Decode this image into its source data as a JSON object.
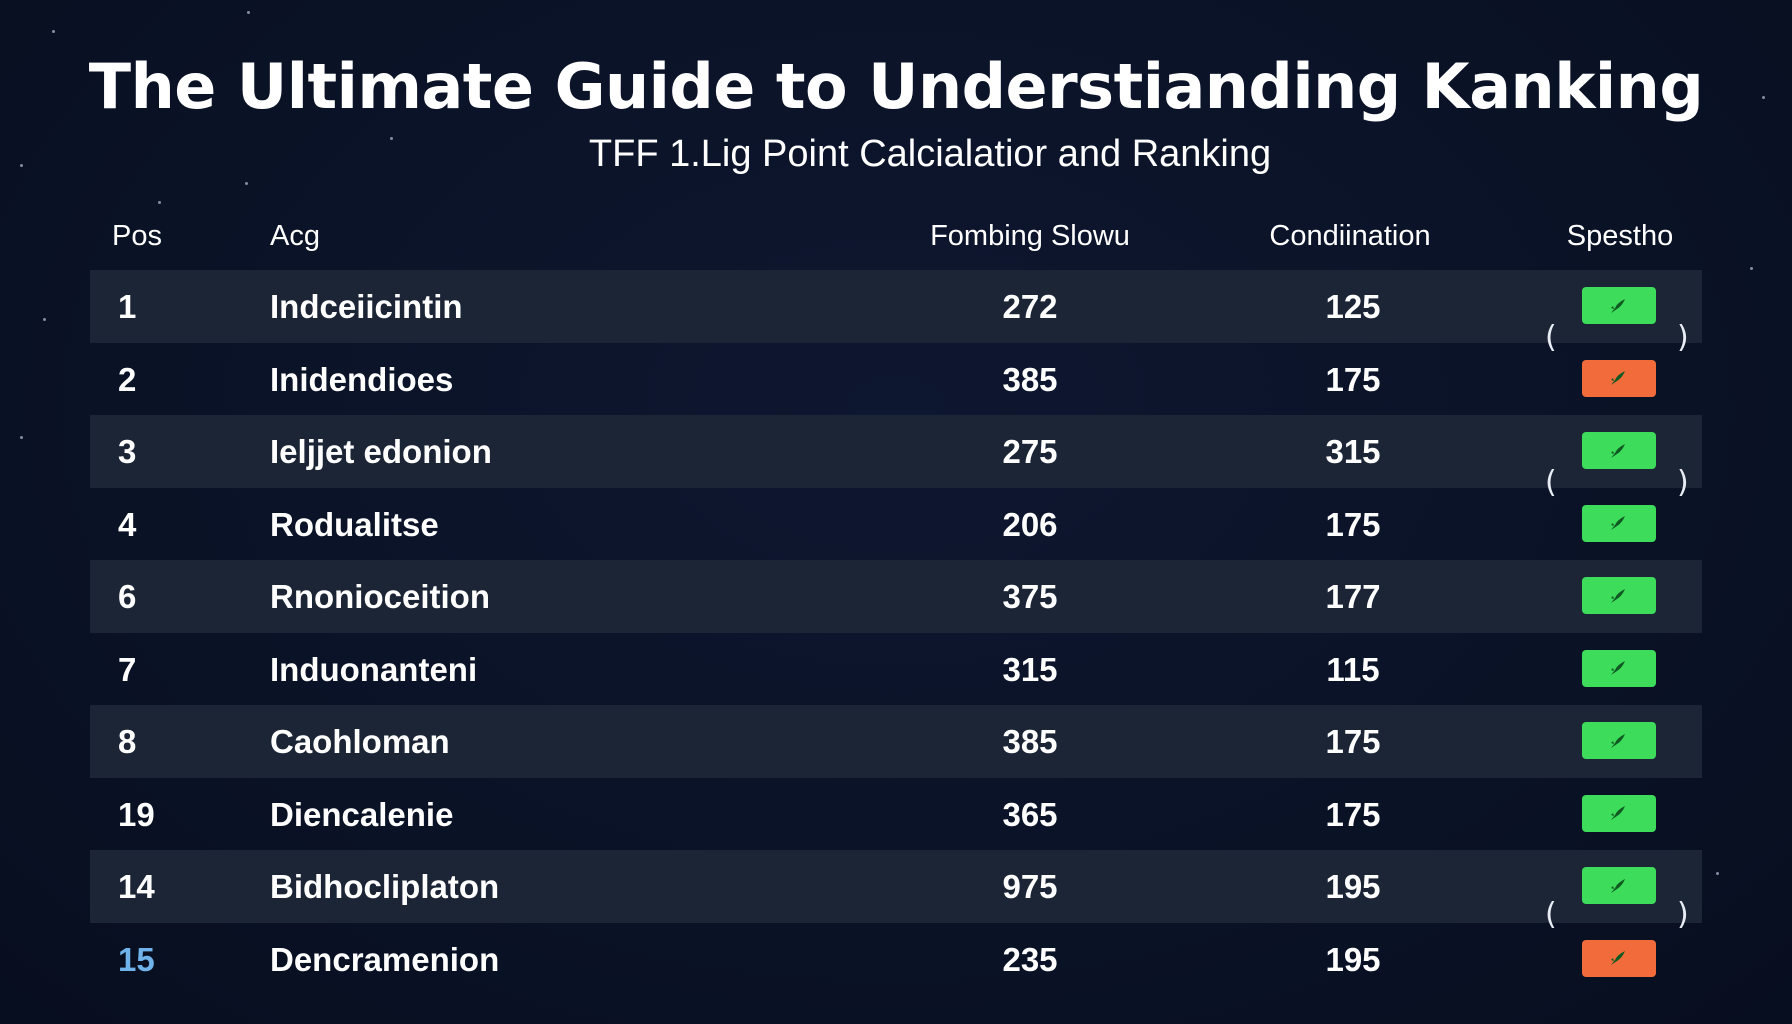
{
  "header": {
    "title": "The Ultimate Guide to Understianding Kanking",
    "subtitle": "TFF 1.Lig Point Calcialatior and Ranking"
  },
  "table": {
    "columns": [
      "Pos",
      "Acg",
      "Fombing Slowu",
      "Condiination",
      "Spestho"
    ],
    "rows": [
      {
        "pos": "1",
        "name": "Indceiicintin",
        "fombing": "272",
        "condination": "125",
        "status": "green"
      },
      {
        "pos": "2",
        "name": "Inidendioes",
        "fombing": "385",
        "condination": "175",
        "status": "orange"
      },
      {
        "pos": "3",
        "name": "Ieljjet edonion",
        "fombing": "275",
        "condination": "315",
        "status": "green"
      },
      {
        "pos": "4",
        "name": "Rodualitse",
        "fombing": "206",
        "condination": "175",
        "status": "green"
      },
      {
        "pos": "6",
        "name": "Rnonioceition",
        "fombing": "375",
        "condination": "177",
        "status": "green"
      },
      {
        "pos": "7",
        "name": "Induonanteni",
        "fombing": "315",
        "condination": "115",
        "status": "green"
      },
      {
        "pos": "8",
        "name": "Caohloman",
        "fombing": "385",
        "condination": "175",
        "status": "green"
      },
      {
        "pos": "19",
        "name": "Diencalenie",
        "fombing": "365",
        "condination": "175",
        "status": "green"
      },
      {
        "pos": "14",
        "name": "Bidhocliplaton",
        "fombing": "975",
        "condination": "195",
        "status": "green"
      },
      {
        "pos": "15",
        "name": "Dencramenion",
        "fombing": "235",
        "condination": "195",
        "status": "orange"
      }
    ],
    "status_icon": "rocket-icon",
    "decorations": {
      "bracket_open": "(",
      "bracket_close": ")"
    }
  },
  "colors": {
    "background": "#0a1226",
    "row_alt": "#1c2536",
    "status_green": "#3ddc5a",
    "status_orange": "#f26b3a",
    "status_icon": "#0f5a22",
    "highlight_pos": "#6fb3ea"
  }
}
